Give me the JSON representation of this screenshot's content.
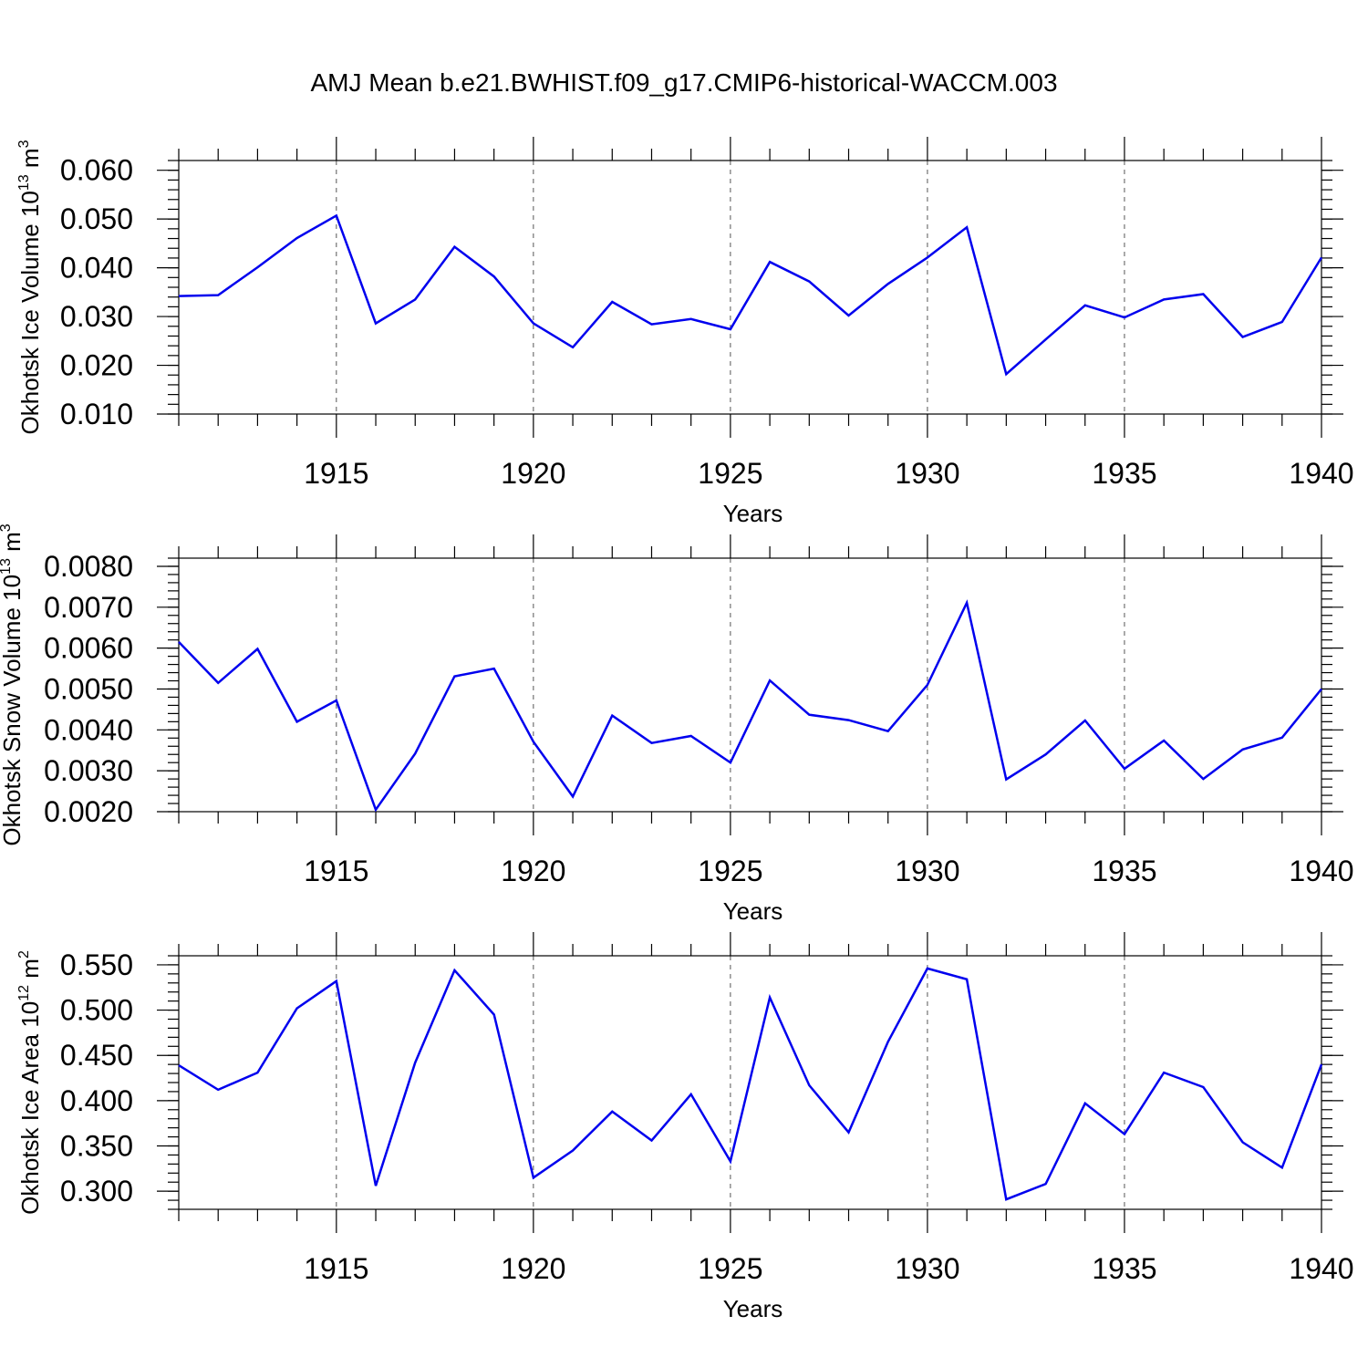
{
  "title": "AMJ Mean b.e21.BWHIST.f09_g17.CMIP6-historical-WACCM.003",
  "series_color": "#0000ee",
  "chart_data": [
    {
      "type": "line",
      "title": "",
      "xlabel": "Years",
      "ylabel": {
        "main": "Okhotsk Ice Volume 10",
        "exp": "13",
        "unit": " m",
        "unit_exp": "3"
      },
      "xlim": [
        1911,
        1940
      ],
      "ylim": [
        0.01,
        0.062
      ],
      "x_ticks": [
        "1915",
        "1920",
        "1925",
        "1930",
        "1935",
        "1940"
      ],
      "y_ticks": [
        "0.010",
        "0.020",
        "0.030",
        "0.040",
        "0.050",
        "0.060"
      ],
      "y_tick_values": [
        0.01,
        0.02,
        0.03,
        0.04,
        0.05,
        0.06
      ],
      "grid": "vertical dashed at major x ticks",
      "x": [
        1911,
        1912,
        1913,
        1914,
        1915,
        1916,
        1917,
        1918,
        1919,
        1920,
        1921,
        1922,
        1923,
        1924,
        1925,
        1926,
        1927,
        1928,
        1929,
        1930,
        1931,
        1932,
        1933,
        1934,
        1935,
        1936,
        1937,
        1938,
        1939,
        1940
      ],
      "series": [
        {
          "values": [
            0.0342,
            0.0344,
            0.0401,
            0.0461,
            0.0507,
            0.0286,
            0.0335,
            0.0443,
            0.0382,
            0.0286,
            0.0237,
            0.033,
            0.0284,
            0.0295,
            0.0274,
            0.0412,
            0.0372,
            0.0302,
            0.0367,
            0.0421,
            0.0483,
            0.0182,
            0.0253,
            0.0323,
            0.0298,
            0.0335,
            0.0346,
            0.0258,
            0.0289,
            0.0421
          ]
        }
      ]
    },
    {
      "type": "line",
      "title": "",
      "xlabel": "Years",
      "ylabel": {
        "main": "Okhotsk Snow Volume 10",
        "exp": "13",
        "unit": " m",
        "unit_exp": "3"
      },
      "xlim": [
        1911,
        1940
      ],
      "ylim": [
        0.002,
        0.0082
      ],
      "x_ticks": [
        "1915",
        "1920",
        "1925",
        "1930",
        "1935",
        "1940"
      ],
      "y_ticks": [
        "0.0020",
        "0.0030",
        "0.0040",
        "0.0050",
        "0.0060",
        "0.0070",
        "0.0080"
      ],
      "y_tick_values": [
        0.002,
        0.003,
        0.004,
        0.005,
        0.006,
        0.007,
        0.008
      ],
      "grid": "vertical dashed at major x ticks",
      "x": [
        1911,
        1912,
        1913,
        1914,
        1915,
        1916,
        1917,
        1918,
        1919,
        1920,
        1921,
        1922,
        1923,
        1924,
        1925,
        1926,
        1927,
        1928,
        1929,
        1930,
        1931,
        1932,
        1933,
        1934,
        1935,
        1936,
        1937,
        1938,
        1939,
        1940
      ],
      "series": [
        {
          "values": [
            0.00615,
            0.00515,
            0.00598,
            0.0042,
            0.00472,
            0.00205,
            0.00342,
            0.00531,
            0.0055,
            0.00371,
            0.00237,
            0.00435,
            0.00368,
            0.00385,
            0.0032,
            0.00521,
            0.00437,
            0.00424,
            0.00397,
            0.0051,
            0.00711,
            0.00279,
            0.0034,
            0.00423,
            0.00305,
            0.00374,
            0.0028,
            0.00352,
            0.00381,
            0.005
          ]
        }
      ]
    },
    {
      "type": "line",
      "title": "",
      "xlabel": "Years",
      "ylabel": {
        "main": "Okhotsk Ice Area 10",
        "exp": "12",
        "unit": " m",
        "unit_exp": "2"
      },
      "xlim": [
        1911,
        1940
      ],
      "ylim": [
        0.28,
        0.56
      ],
      "x_ticks": [
        "1915",
        "1920",
        "1925",
        "1930",
        "1935",
        "1940"
      ],
      "y_ticks": [
        "0.300",
        "0.350",
        "0.400",
        "0.450",
        "0.500",
        "0.550"
      ],
      "y_tick_values": [
        0.3,
        0.35,
        0.4,
        0.45,
        0.5,
        0.55
      ],
      "grid": "vertical dashed at major x ticks",
      "x": [
        1911,
        1912,
        1913,
        1914,
        1915,
        1916,
        1917,
        1918,
        1919,
        1920,
        1921,
        1922,
        1923,
        1924,
        1925,
        1926,
        1927,
        1928,
        1929,
        1930,
        1931,
        1932,
        1933,
        1934,
        1935,
        1936,
        1937,
        1938,
        1939,
        1940
      ],
      "series": [
        {
          "values": [
            0.439,
            0.412,
            0.431,
            0.502,
            0.532,
            0.306,
            0.442,
            0.544,
            0.495,
            0.315,
            0.345,
            0.388,
            0.356,
            0.407,
            0.333,
            0.514,
            0.417,
            0.365,
            0.465,
            0.546,
            0.534,
            0.291,
            0.308,
            0.397,
            0.363,
            0.431,
            0.415,
            0.354,
            0.326,
            0.44
          ]
        }
      ]
    }
  ]
}
